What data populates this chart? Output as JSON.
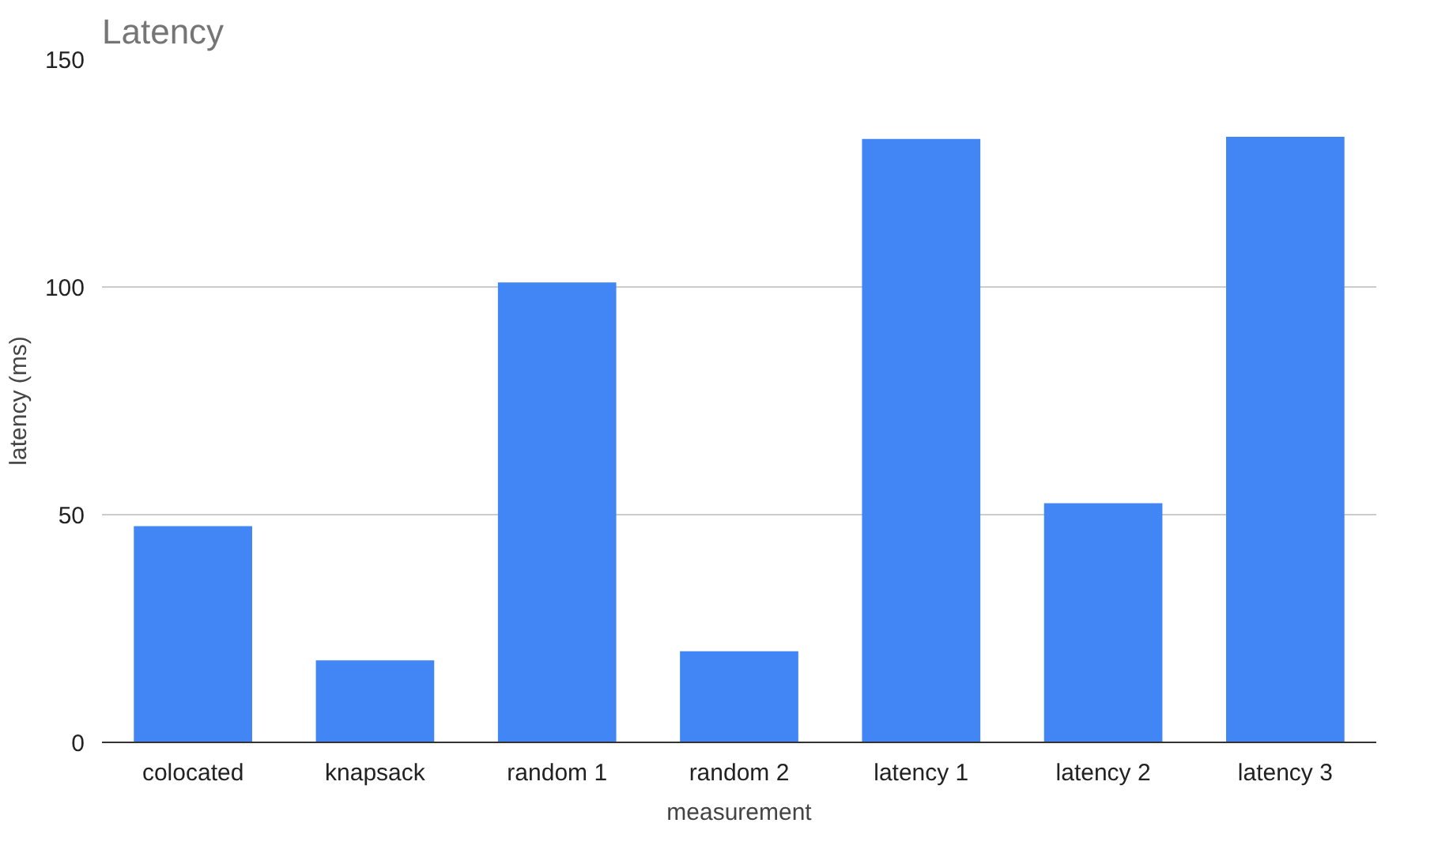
{
  "chart_data": {
    "type": "bar",
    "title": "Latency",
    "xlabel": "measurement",
    "ylabel": "latency (ms)",
    "categories": [
      "colocated",
      "knapsack",
      "random 1",
      "random 2",
      "latency 1",
      "latency 2",
      "latency 3"
    ],
    "values": [
      47.5,
      18,
      101,
      20,
      132.5,
      52.5,
      133
    ],
    "color": "#4285f4",
    "ylim": [
      0,
      150
    ],
    "yticks": [
      0,
      50,
      100,
      150
    ],
    "grid": "y"
  }
}
